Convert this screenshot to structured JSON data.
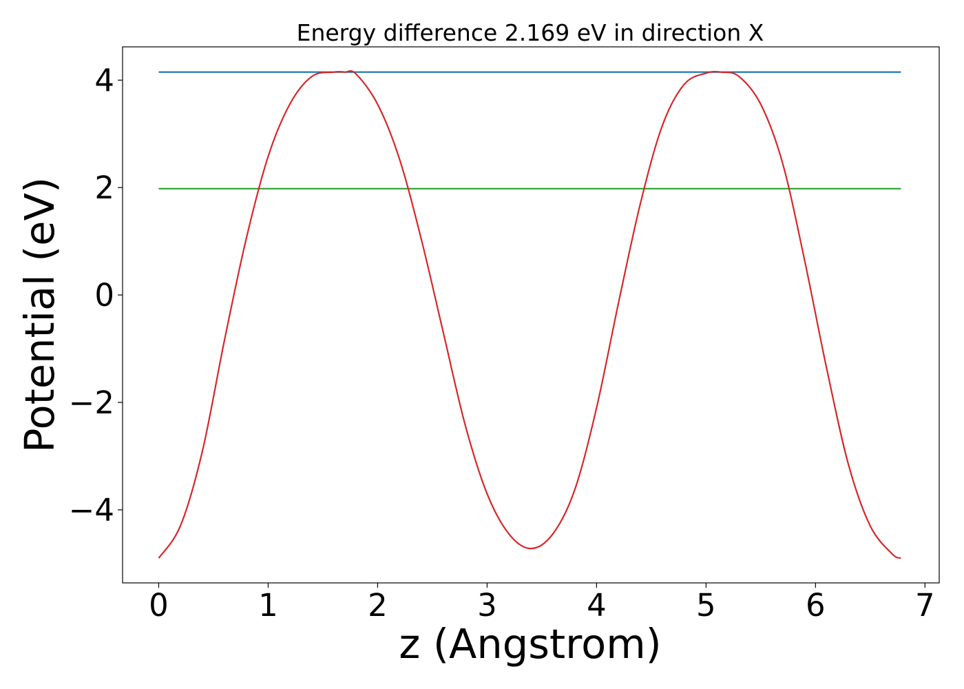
{
  "chart_data": {
    "type": "line",
    "title": "Energy difference 2.169 eV in direction X",
    "xlabel": "z (Angstrom)",
    "ylabel": "Potential (eV)",
    "xlim": [
      -0.33,
      7.13
    ],
    "ylim": [
      -5.36,
      4.62
    ],
    "x_ticks": [
      0,
      1,
      2,
      3,
      4,
      5,
      6,
      7
    ],
    "x_tick_labels": [
      "0",
      "1",
      "2",
      "3",
      "4",
      "5",
      "6",
      "7"
    ],
    "y_ticks": [
      -4,
      -2,
      0,
      2,
      4
    ],
    "y_tick_labels": [
      "−4",
      "−2",
      "0",
      "2",
      "4"
    ],
    "grid": false,
    "series": [
      {
        "color": "#1f77b4",
        "x": [
          0,
          6.78
        ],
        "y": [
          4.15,
          4.15
        ]
      },
      {
        "color": "#2ca02c",
        "x": [
          0,
          6.78
        ],
        "y": [
          1.98,
          1.98
        ]
      },
      {
        "color": "#d62728",
        "x": [
          0,
          0.2,
          0.4,
          0.6,
          0.8,
          1.0,
          1.2,
          1.4,
          1.6,
          1.7,
          1.8,
          2.0,
          2.2,
          2.4,
          2.6,
          2.8,
          3.0,
          3.2,
          3.4,
          3.6,
          3.8,
          4.0,
          4.2,
          4.4,
          4.6,
          4.8,
          5.0,
          5.14,
          5.3,
          5.5,
          5.7,
          5.9,
          6.1,
          6.3,
          6.5,
          6.7,
          6.78
        ],
        "y": [
          -4.9,
          -4.29,
          -2.9,
          -0.85,
          1.05,
          2.58,
          3.56,
          4.07,
          4.15,
          4.15,
          4.12,
          3.55,
          2.53,
          1.03,
          -0.7,
          -2.42,
          -3.7,
          -4.45,
          -4.72,
          -4.45,
          -3.63,
          -2.1,
          -0.15,
          1.7,
          3.15,
          3.92,
          4.13,
          4.15,
          4.07,
          3.55,
          2.45,
          0.65,
          -1.35,
          -3.15,
          -4.3,
          -4.82,
          -4.9
        ]
      }
    ]
  }
}
